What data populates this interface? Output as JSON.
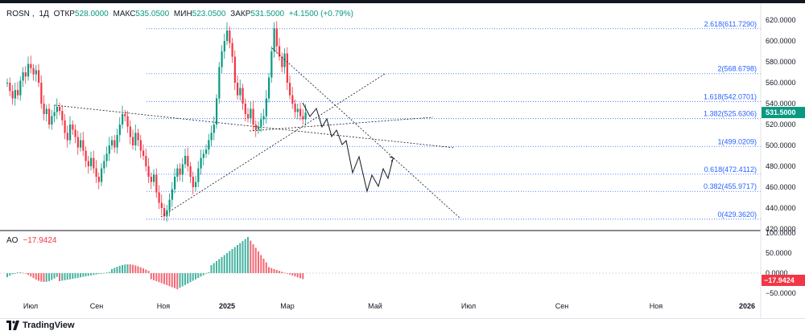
{
  "legend": {
    "symbol": "ROSN",
    "interval": "1Д",
    "open_label": "ОТКР",
    "open": "528.0000",
    "high_label": "МАКС",
    "high": "535.0500",
    "low_label": "МИН",
    "low": "523.0500",
    "close_label": "ЗАКР",
    "close": "531.5000",
    "change": "+4.1500 (+0.79%)"
  },
  "price_scale": [
    "620.0000",
    "600.0000",
    "580.0000",
    "560.0000",
    "540.0000",
    "520.0000",
    "500.0000",
    "480.0000",
    "460.0000",
    "440.0000",
    "420.0000"
  ],
  "current_price": "531.5000",
  "fib_levels": [
    {
      "label": "2.618(611.7290)",
      "price": 611.729
    },
    {
      "label": "2(568.6798)",
      "price": 568.6798
    },
    {
      "label": "1.618(542.0701)",
      "price": 542.0701
    },
    {
      "label": "1.382(525.6306)",
      "price": 525.6306
    },
    {
      "label": "1(499.0209)",
      "price": 499.0209
    },
    {
      "label": "0.618(472.4112)",
      "price": 472.4112
    },
    {
      "label": "0.382(455.9717)",
      "price": 455.9717
    },
    {
      "label": "0(429.3620)",
      "price": 429.362
    }
  ],
  "ao": {
    "label": "AO",
    "value": "−17.9424",
    "scale": [
      "100.0000",
      "50.0000",
      "0.0000",
      "−50.0000"
    ],
    "current": "−17.9424"
  },
  "time_axis": [
    "Июл",
    "Сен",
    "Ноя",
    "2025",
    "Мар",
    "Май",
    "Июл",
    "Сен",
    "Ноя",
    "2026"
  ],
  "brand": "TradingView",
  "colors": {
    "up": "#089981",
    "down": "#f23645",
    "fib": "#2962ff",
    "accent": "#089981"
  }
}
